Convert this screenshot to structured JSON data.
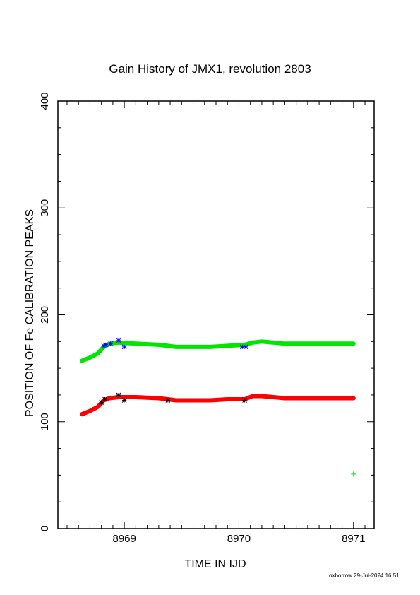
{
  "chart_data": {
    "type": "line",
    "title": "Gain History of JMX1, revolution 2803",
    "xlabel": "TIME IN IJD",
    "ylabel": "POSITION OF Fe CALIBRATION PEAKS",
    "xlim": [
      8968.42,
      8971.18
    ],
    "ylim": [
      0,
      400
    ],
    "x_ticks": [
      8969,
      8970,
      8971
    ],
    "y_ticks": [
      0,
      100,
      200,
      300,
      400
    ],
    "grid": false,
    "series": [
      {
        "color": "#00e600",
        "marker": "line",
        "x": [
          8968.63,
          8968.7,
          8968.77,
          8968.82,
          8968.87,
          8968.95,
          8969.1,
          8969.3,
          8969.38,
          8969.45,
          8969.6,
          8969.75,
          8969.9,
          8970.05,
          8970.12,
          8970.2,
          8970.3,
          8970.4,
          8970.55,
          8970.7,
          8970.85,
          8971.0
        ],
        "y": [
          157,
          160,
          164,
          170,
          173,
          174,
          173,
          172,
          171,
          170,
          170,
          170,
          171,
          172,
          174,
          175,
          174,
          173,
          173,
          173,
          173,
          173
        ]
      },
      {
        "color": "#0000ff",
        "marker": "star",
        "x": [
          8968.82,
          8968.84,
          8968.88,
          8968.95,
          8969.0,
          8970.03,
          8970.06
        ],
        "y": [
          171,
          172,
          173,
          176,
          170,
          170,
          170
        ]
      },
      {
        "color": "#ff0000",
        "marker": "line",
        "x": [
          8968.63,
          8968.7,
          8968.77,
          8968.82,
          8968.87,
          8968.95,
          8969.1,
          8969.3,
          8969.38,
          8969.45,
          8969.6,
          8969.75,
          8969.9,
          8970.05,
          8970.12,
          8970.2,
          8970.3,
          8970.4,
          8970.55,
          8970.7,
          8970.85,
          8971.0
        ],
        "y": [
          107,
          110,
          114,
          120,
          122,
          123,
          123,
          122,
          121,
          120,
          120,
          120,
          121,
          121,
          124,
          124,
          123,
          122,
          122,
          122,
          122,
          122
        ]
      },
      {
        "color": "#000000",
        "marker": "star",
        "x": [
          8968.8,
          8968.83,
          8968.95,
          8969.0,
          8969.38,
          8970.05
        ],
        "y": [
          118,
          121,
          125,
          120,
          120,
          120
        ]
      },
      {
        "color": "#00e600",
        "marker": "plus",
        "x": [
          8971.0
        ],
        "y": [
          51
        ]
      }
    ]
  },
  "footer": "oxborrow 29-Jul-2024 16:51"
}
